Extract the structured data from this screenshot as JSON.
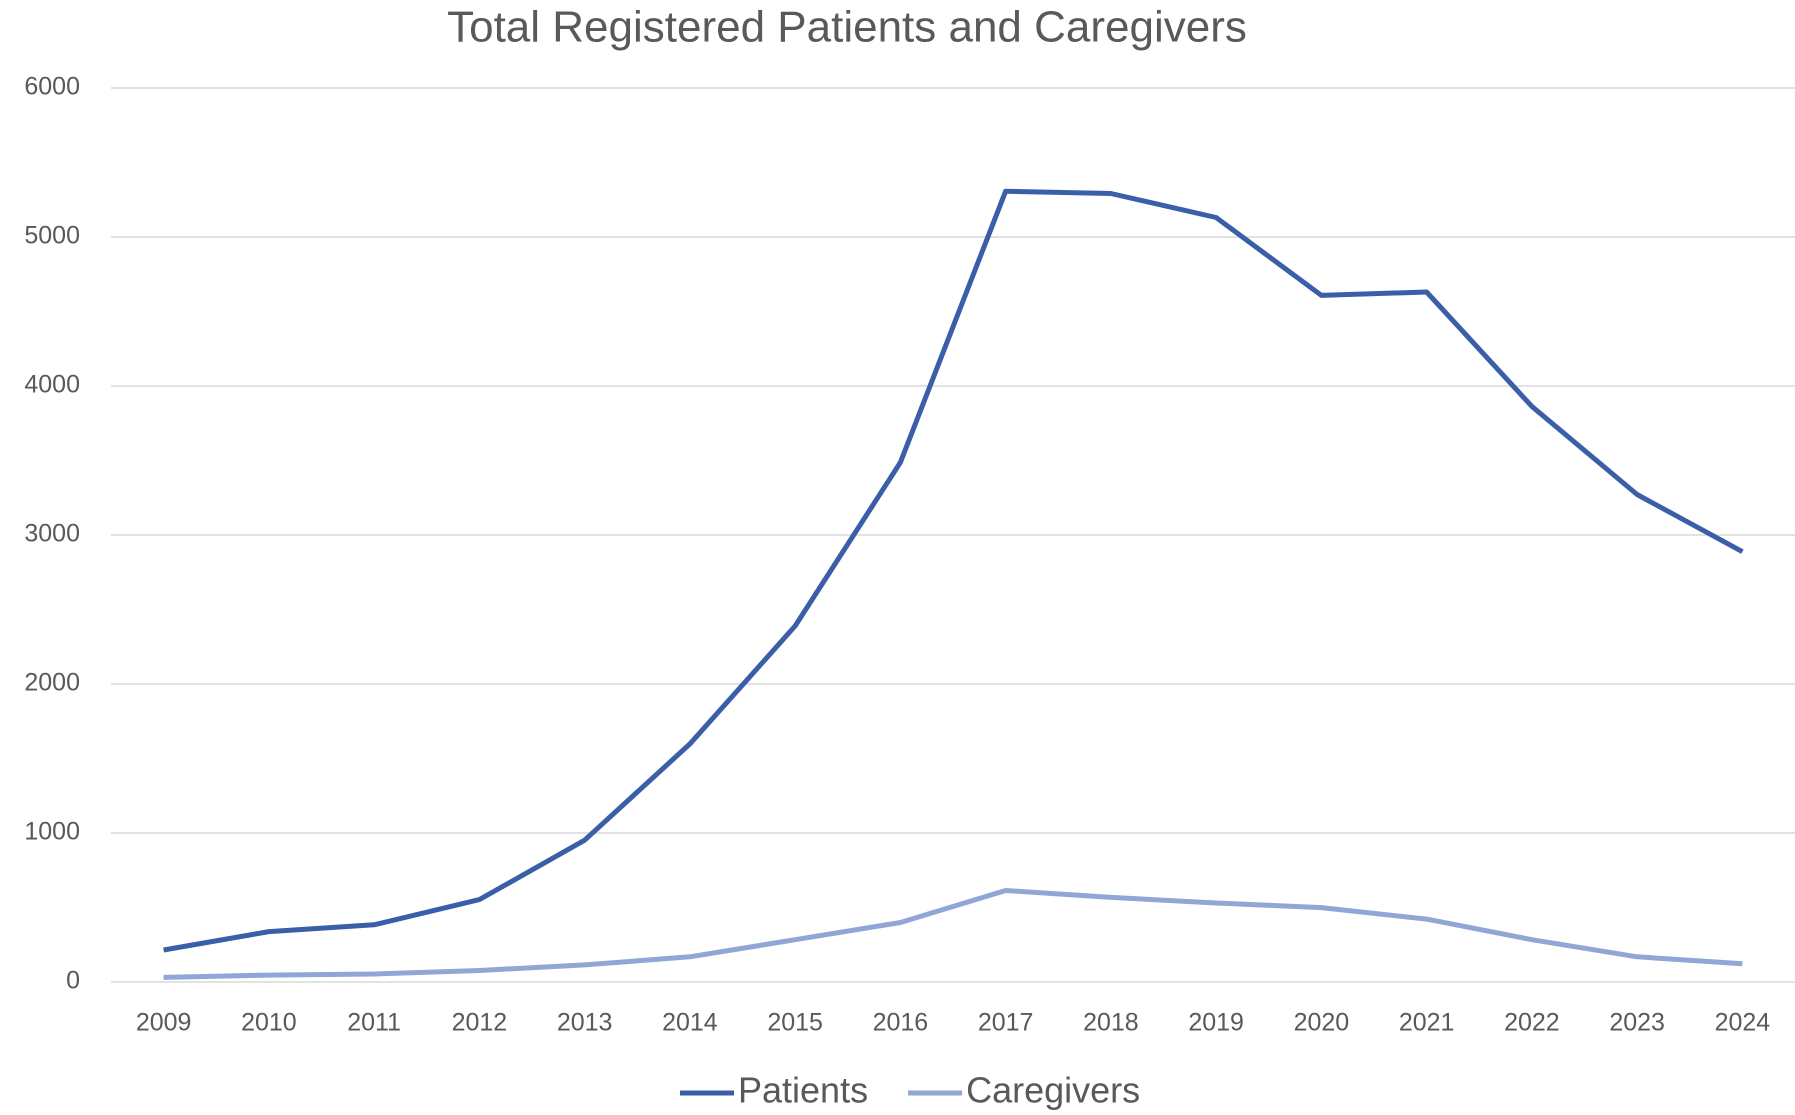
{
  "chart_data": {
    "type": "line",
    "title": "Total Registered Patients and Caregivers",
    "categories": [
      "2009",
      "2010",
      "2011",
      "2012",
      "2013",
      "2014",
      "2015",
      "2016",
      "2017",
      "2018",
      "2019",
      "2020",
      "2021",
      "2022",
      "2023",
      "2024"
    ],
    "series": [
      {
        "name": "Patients",
        "color": "#3a5ea8",
        "values": [
          215,
          338,
          384,
          553,
          952,
          1598,
          2389,
          3487,
          5307,
          5292,
          5131,
          4608,
          4631,
          3863,
          3272,
          2888
        ]
      },
      {
        "name": "Caregivers",
        "color": "#8fa6d6",
        "values": [
          31,
          46,
          54,
          77,
          115,
          169,
          284,
          399,
          614,
          568,
          530,
          499,
          422,
          284,
          169,
          123
        ]
      }
    ],
    "ylim": [
      0,
      6000
    ],
    "yticks": [
      0,
      1000,
      2000,
      3000,
      4000,
      5000,
      6000
    ],
    "grid": true,
    "legend": "bottom"
  }
}
